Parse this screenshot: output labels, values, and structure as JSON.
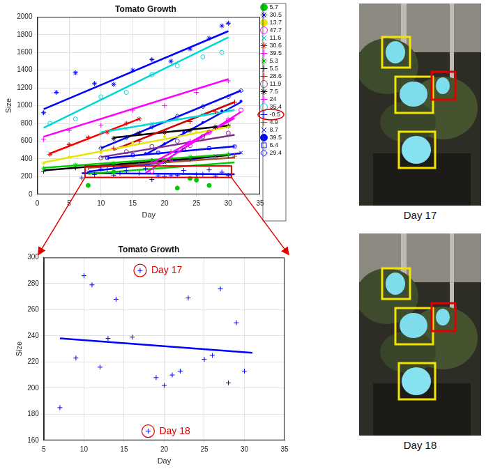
{
  "chart_data": [
    {
      "type": "scatter",
      "title": "Tomato Growth",
      "x_label": "Day",
      "y_label": "Size",
      "xlim": [
        0,
        35
      ],
      "xticks": [
        0,
        5,
        10,
        15,
        20,
        25,
        30,
        35
      ],
      "ylim": [
        0,
        2000
      ],
      "yticks": [
        0,
        200,
        400,
        600,
        800,
        1000,
        1200,
        1400,
        1600,
        1800,
        2000
      ],
      "grid": true,
      "legend": "right",
      "zoom": {
        "series": "-0.5",
        "x": [
          7.5,
          30.5
        ],
        "y": [
          190,
          320
        ]
      },
      "series": [
        {
          "name": "5.7",
          "color": "#00cc00",
          "marker": "dot",
          "x": [
            8,
            12,
            22,
            24,
            25,
            27
          ],
          "values": [
            100,
            250,
            70,
            180,
            160,
            100
          ],
          "fit": {
            "x": [
              8,
              31
            ],
            "values": [
              230,
              360
            ]
          }
        },
        {
          "name": "30.5",
          "color": "#0000ff",
          "marker": "asterisk",
          "x": [
            1,
            3,
            6,
            9,
            12,
            15,
            18,
            21,
            24,
            27,
            29,
            30
          ],
          "values": [
            920,
            1150,
            1370,
            1250,
            1240,
            1400,
            1520,
            1500,
            1640,
            1760,
            1900,
            1930
          ],
          "fit": {
            "x": [
              1,
              30
            ],
            "values": [
              960,
              1840
            ]
          }
        },
        {
          "name": "13.7",
          "color": "#e6e600",
          "marker": "point",
          "x": [
            1,
            5,
            10,
            15,
            20,
            25,
            30
          ],
          "values": [
            350,
            420,
            470,
            580,
            650,
            700,
            760
          ],
          "fit": {
            "x": [
              1,
              30
            ],
            "values": [
              360,
              760
            ]
          }
        },
        {
          "name": "47.7",
          "color": "#ff00ff",
          "marker": "circle",
          "x": [
            18,
            21,
            24,
            27,
            30,
            32
          ],
          "values": [
            260,
            400,
            550,
            700,
            840,
            950
          ],
          "fit": {
            "x": [
              17,
              32
            ],
            "values": [
              240,
              930
            ]
          }
        },
        {
          "name": "11.6",
          "color": "#00d8d8",
          "marker": "x",
          "x": [
            10,
            14,
            18,
            22,
            26,
            30
          ],
          "values": [
            690,
            740,
            800,
            860,
            900,
            950
          ],
          "fit": {
            "x": [
              10,
              31
            ],
            "values": [
              700,
              950
            ]
          }
        },
        {
          "name": "30.6",
          "color": "#ff0000",
          "marker": "asterisk",
          "x": [
            2,
            5,
            8,
            11,
            14,
            16
          ],
          "values": [
            450,
            560,
            640,
            700,
            800,
            850
          ],
          "fit": {
            "x": [
              2,
              16
            ],
            "values": [
              460,
              850
            ]
          }
        },
        {
          "name": "39.5",
          "color": "#ff00ff",
          "marker": "plus",
          "x": [
            18,
            21,
            24,
            27,
            30
          ],
          "values": [
            360,
            480,
            600,
            700,
            830
          ],
          "fit": {
            "x": [
              18,
              31
            ],
            "values": [
              350,
              860
            ]
          }
        },
        {
          "name": "5.3",
          "color": "#00cc00",
          "marker": "asterisk",
          "x": [
            1,
            6,
            12,
            18,
            24,
            30
          ],
          "values": [
            290,
            330,
            350,
            380,
            420,
            450
          ],
          "fit": {
            "x": [
              1,
              30
            ],
            "values": [
              300,
              450
            ]
          }
        },
        {
          "name": "5.5",
          "color": "#000000",
          "marker": "plus",
          "x": [
            1,
            6,
            12,
            18,
            24,
            30
          ],
          "values": [
            260,
            300,
            330,
            380,
            400,
            440
          ],
          "fit": {
            "x": [
              1,
              30
            ],
            "values": [
              270,
              440
            ]
          }
        },
        {
          "name": "28.6",
          "color": "#cc0000",
          "marker": "plus",
          "x": [
            12,
            16,
            20,
            24,
            28,
            31
          ],
          "values": [
            520,
            600,
            700,
            820,
            930,
            1040
          ],
          "fit": {
            "x": [
              12,
              31
            ],
            "values": [
              500,
              1040
            ]
          }
        },
        {
          "name": "11.9",
          "color": "#7e2f8e",
          "marker": "circle",
          "x": [
            10,
            14,
            18,
            22,
            26,
            30
          ],
          "values": [
            410,
            480,
            540,
            600,
            650,
            690
          ],
          "fit": {
            "x": [
              10,
              31
            ],
            "values": [
              420,
              670
            ]
          }
        },
        {
          "name": "7.5",
          "color": "#000000",
          "marker": "asterisk",
          "x": [
            12,
            16,
            20,
            24,
            28,
            30
          ],
          "values": [
            630,
            690,
            700,
            720,
            760,
            770
          ],
          "fit": {
            "x": [
              12,
              30
            ],
            "values": [
              640,
              775
            ]
          }
        },
        {
          "name": "24",
          "color": "#ff00ff",
          "marker": "plus",
          "x": [
            1,
            5,
            10,
            15,
            20,
            25,
            30
          ],
          "values": [
            620,
            720,
            780,
            950,
            1000,
            1150,
            1280
          ],
          "fit": {
            "x": [
              1,
              30
            ],
            "values": [
              650,
              1300
            ]
          }
        },
        {
          "name": "35.4",
          "color": "#00d8d8",
          "marker": "circle",
          "x": [
            2,
            6,
            10,
            14,
            18,
            22,
            26,
            29
          ],
          "values": [
            800,
            850,
            1100,
            1150,
            1350,
            1450,
            1550,
            1600
          ],
          "fit": {
            "x": [
              1,
              30
            ],
            "values": [
              750,
              1770
            ]
          }
        },
        {
          "name": "-0.5",
          "color": "#0000ff",
          "marker": "plus",
          "x": [
            7,
            9,
            10,
            11,
            12,
            13,
            14,
            16,
            17,
            18,
            19,
            20,
            21,
            22,
            23,
            25,
            26,
            27,
            28,
            29,
            30
          ],
          "values": [
            185,
            223,
            286,
            279,
            216,
            238,
            268,
            239,
            290,
            167,
            208,
            202,
            210,
            213,
            269,
            222,
            225,
            276,
            204,
            250,
            213
          ],
          "fit": {
            "x": [
              7,
              31
            ],
            "values": [
              238,
              227
            ]
          }
        },
        {
          "name": "4.9",
          "color": "#a0522d",
          "marker": "plus",
          "x": [
            8,
            12,
            16,
            20,
            24,
            28,
            31
          ],
          "values": [
            300,
            330,
            340,
            380,
            390,
            420,
            430
          ],
          "fit": {
            "x": [
              8,
              31
            ],
            "values": [
              300,
              415
            ]
          }
        },
        {
          "name": "8.7",
          "color": "#0000ff",
          "marker": "x",
          "x": [
            8,
            12,
            16,
            20,
            24,
            28,
            32
          ],
          "values": [
            250,
            300,
            330,
            360,
            400,
            430,
            470
          ],
          "fit": {
            "x": [
              8,
              32
            ],
            "values": [
              255,
              465
            ]
          }
        },
        {
          "name": "39.5",
          "color": "#0000ff",
          "marker": "point",
          "x": [
            17,
            20,
            23,
            26,
            29,
            32
          ],
          "values": [
            460,
            570,
            700,
            810,
            940,
            1050
          ],
          "fit": {
            "x": [
              17,
              32
            ],
            "values": [
              450,
              1040
            ]
          }
        },
        {
          "name": "6.4",
          "color": "#0000ff",
          "marker": "square",
          "x": [
            11,
            15,
            19,
            23,
            27,
            31
          ],
          "values": [
            410,
            440,
            470,
            500,
            520,
            540
          ],
          "fit": {
            "x": [
              11,
              31
            ],
            "values": [
              410,
              540
            ]
          }
        },
        {
          "name": "29.4",
          "color": "#0000ff",
          "marker": "pentagram",
          "x": [
            10,
            14,
            18,
            22,
            26,
            30,
            32
          ],
          "values": [
            520,
            640,
            760,
            880,
            990,
            1100,
            1170
          ],
          "fit": {
            "x": [
              10,
              32
            ],
            "values": [
              520,
              1170
            ]
          }
        }
      ]
    },
    {
      "type": "scatter",
      "title": "Tomato Growth",
      "x_label": "Day",
      "y_label": "Size",
      "xlim": [
        5,
        35
      ],
      "xticks": [
        5,
        10,
        15,
        20,
        25,
        30,
        35
      ],
      "ylim": [
        160,
        300
      ],
      "yticks": [
        160,
        180,
        200,
        220,
        240,
        260,
        280,
        300
      ],
      "grid": true,
      "series": [
        {
          "name": "-0.5",
          "color": "#0000ff",
          "marker": "plus",
          "x": [
            7,
            9,
            10,
            11,
            12,
            13,
            14,
            16,
            17,
            18,
            19,
            20,
            21,
            22,
            23,
            25,
            26,
            27,
            28,
            29,
            30
          ],
          "values": [
            185,
            223,
            286,
            279,
            216,
            238,
            268,
            239,
            290,
            167,
            208,
            202,
            210,
            213,
            269,
            222,
            225,
            276,
            204,
            250,
            213
          ],
          "fit": {
            "x": [
              7,
              31
            ],
            "values": [
              238,
              227
            ]
          }
        }
      ],
      "annotations": [
        {
          "text": "Day 17",
          "x": 17,
          "y": 290
        },
        {
          "text": "Day 18",
          "x": 18,
          "y": 167
        }
      ]
    }
  ],
  "images": [
    {
      "caption": "Day 17"
    },
    {
      "caption": "Day 18"
    }
  ]
}
